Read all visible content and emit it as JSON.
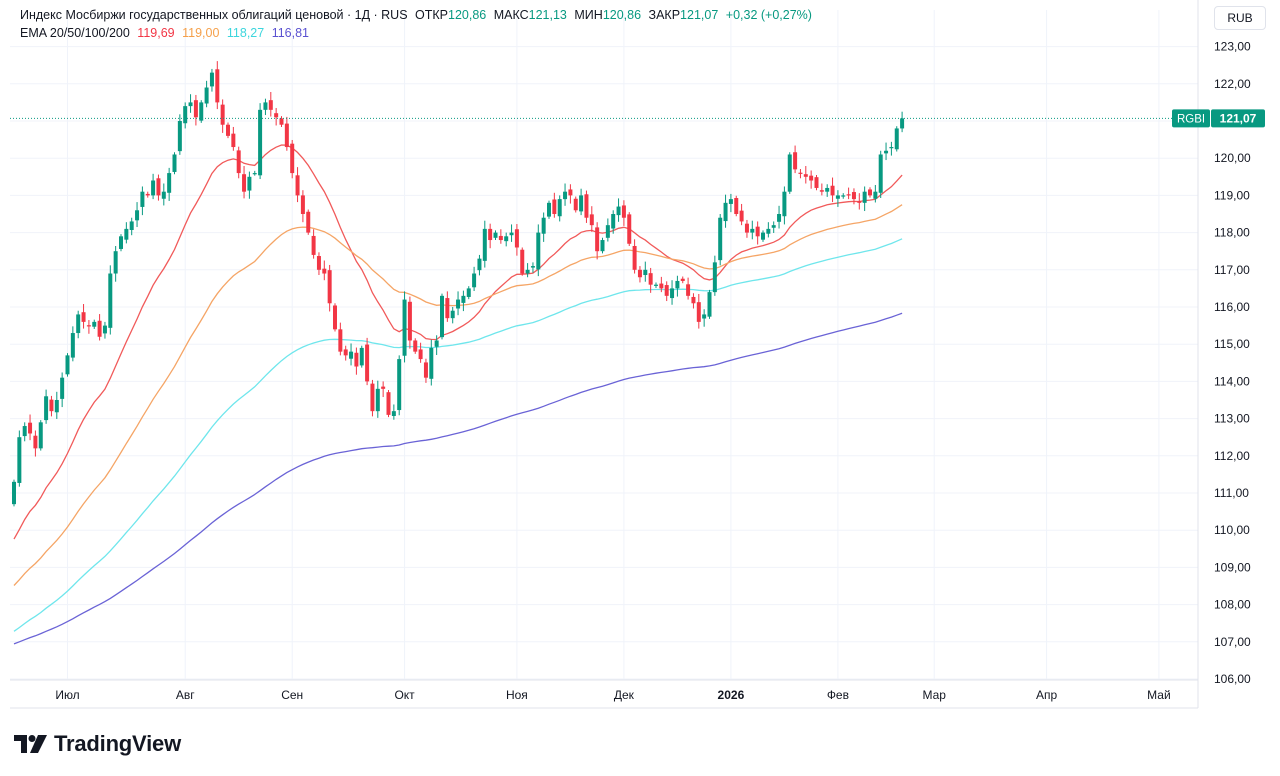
{
  "legend": {
    "title": "Индекс Мосбиржи государственных облигаций ценовой · 1Д · RUS",
    "open_label": "ОТКР",
    "open": "120,86",
    "high_label": "МАКС",
    "high": "121,13",
    "low_label": "МИН",
    "low": "120,86",
    "close_label": "ЗАКР",
    "close": "121,07",
    "change": "+0,32 (+0,27%)",
    "ema_label": "EMA 20/50/100/200",
    "ema20": "119,69",
    "ema50": "119,00",
    "ema100": "118,27",
    "ema200": "116,81"
  },
  "currency_button": "RUB",
  "price_tag": {
    "symbol": "RGBI",
    "value": "121,07"
  },
  "logo": {
    "text": "TradingView"
  },
  "colors": {
    "up": "#089981",
    "down": "#f23645",
    "ema20": "#f15a5a",
    "ema50": "#f5a566",
    "ema100": "#6fe6ec",
    "ema200": "#6a63d6",
    "grid": "#f0f3fa",
    "text": "#131722"
  },
  "chart_data": {
    "type": "candlestick",
    "y_axis": {
      "min": 106,
      "max": 123,
      "ticks": [
        "123,00",
        "122,00",
        "121,00",
        "120,00",
        "119,00",
        "118,00",
        "117,00",
        "116,00",
        "115,00",
        "114,00",
        "113,00",
        "112,00",
        "111,00",
        "110,00",
        "109,00",
        "108,00",
        "107,00",
        "106,00"
      ]
    },
    "x_axis": {
      "labels": [
        {
          "text": "Июл",
          "bar": 10,
          "bold": false
        },
        {
          "text": "Авг",
          "bar": 32,
          "bold": false
        },
        {
          "text": "Сен",
          "bar": 52,
          "bold": false
        },
        {
          "text": "Окт",
          "bar": 73,
          "bold": false
        },
        {
          "text": "Ноя",
          "bar": 94,
          "bold": false
        },
        {
          "text": "Дек",
          "bar": 114,
          "bold": false
        },
        {
          "text": "2026",
          "bar": 134,
          "bold": true
        },
        {
          "text": "Фев",
          "bar": 154,
          "bold": false
        },
        {
          "text": "Мар",
          "bar": 172,
          "bold": false
        },
        {
          "text": "Апр",
          "bar": 193,
          "bold": false
        },
        {
          "text": "Май",
          "bar": 214,
          "bold": false
        }
      ]
    },
    "closes": [
      111.3,
      112.5,
      112.8,
      112.6,
      112.2,
      112.9,
      113.6,
      113.2,
      113.5,
      114.1,
      114.7,
      115.3,
      115.8,
      115.6,
      115.5,
      115.6,
      115.2,
      115.5,
      116.9,
      117.5,
      117.9,
      118.1,
      118.3,
      118.6,
      119.1,
      119.0,
      119.4,
      119.0,
      119.1,
      119.6,
      120.1,
      121.0,
      121.4,
      121.5,
      121.1,
      121.5,
      121.9,
      122.3,
      121.5,
      120.9,
      120.6,
      120.3,
      119.6,
      119.1,
      119.5,
      119.6,
      121.3,
      121.5,
      121.3,
      121.1,
      120.9,
      120.3,
      119.6,
      119.0,
      118.5,
      118.0,
      117.4,
      117.0,
      116.9,
      116.1,
      115.4,
      114.8,
      114.7,
      114.8,
      114.4,
      114.9,
      114.0,
      113.2,
      113.8,
      113.8,
      113.1,
      113.2,
      114.6,
      116.2,
      115.1,
      114.8,
      114.6,
      114.1,
      114.9,
      115.1,
      116.3,
      115.7,
      115.9,
      116.2,
      116.3,
      116.5,
      116.9,
      117.3,
      118.1,
      117.8,
      118.0,
      117.8,
      117.9,
      118.0,
      117.6,
      116.9,
      117.0,
      117.1,
      118.0,
      118.4,
      118.8,
      118.5,
      118.9,
      119.1,
      119.0,
      118.6,
      119.0,
      118.4,
      118.2,
      117.5,
      117.8,
      118.2,
      118.5,
      118.7,
      118.4,
      117.7,
      117.0,
      116.8,
      117.0,
      116.6,
      116.6,
      116.5,
      116.3,
      116.5,
      116.7,
      116.7,
      116.3,
      116.1,
      115.6,
      115.8,
      116.4,
      117.2,
      118.4,
      118.8,
      118.9,
      118.5,
      118.3,
      118.0,
      118.1,
      117.9,
      118.0,
      118.1,
      118.2,
      118.5,
      119.1,
      120.1,
      119.7,
      119.6,
      119.5,
      119.4,
      119.2,
      119.1,
      119.2,
      119.0,
      119.0,
      119.0,
      119.0,
      118.9,
      118.8,
      119.1,
      119.0,
      119.1,
      120.1,
      120.2,
      120.3,
      120.8,
      121.07
    ],
    "ema20_last": 119.69,
    "ema50_last": 119.0,
    "ema100_last": 118.27,
    "ema200_last": 116.81
  }
}
